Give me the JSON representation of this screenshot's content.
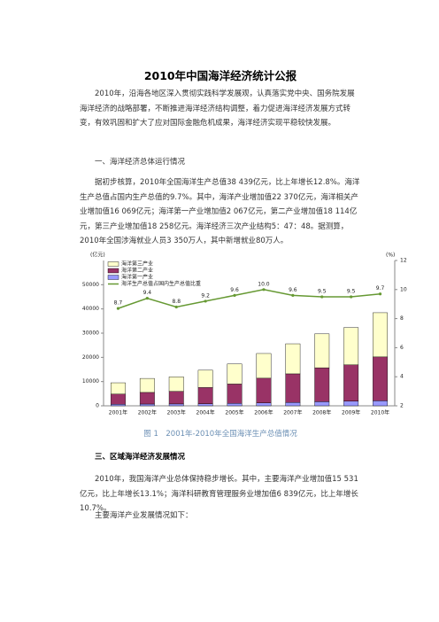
{
  "title": "2010年中国海洋经济统计公报",
  "intro": "2010年，沿海各地区深入贯彻实践科学发展观，认真落实党中央、国务院发展海洋经济的战略部署，不断推进海洋经济结构调整，着力促进海洋经济发展方式转变，有效巩固和扩大了应对国际金融危机成果，海洋经济实现平稳较快发展。",
  "section1": {
    "heading": "一、海洋经济总体运行情况",
    "text": "据初步核算，2010年全国海洋生产总值38 439亿元，比上年增长12.8%。海洋生产总值占国内生产总值的9.7%。其中，海洋产业增加值22 370亿元，海洋相关产业增加值16 069亿元；海洋第一产业增加值2 067亿元，第二产业增加值18 114亿元，第三产业增加值18 258亿元。海洋经济三次产业结构5：47：48。据测算，2010年全国涉海就业人员3 350万人，其中新增就业80万人。"
  },
  "chart_data": {
    "type": "bar",
    "stacked": true,
    "categories": [
      "2001年",
      "2002年",
      "2003年",
      "2004年",
      "2005年",
      "2006年",
      "2007年",
      "2008年",
      "2009年",
      "2010年"
    ],
    "y_label": "(亿元)",
    "y2_label": "(%)",
    "ylim": [
      0,
      60000
    ],
    "yticks": [
      0,
      10000,
      20000,
      30000,
      40000,
      50000
    ],
    "y2lim": [
      2,
      12
    ],
    "y2ticks": [
      2,
      4,
      6,
      8,
      10,
      12
    ],
    "series": [
      {
        "name": "海洋第一产业",
        "color": "#9999ff",
        "values": [
          650,
          730,
          770,
          850,
          1000,
          1200,
          1400,
          1700,
          1900,
          2067
        ]
      },
      {
        "name": "海洋第二产业",
        "color": "#993366",
        "values": [
          4200,
          4800,
          5200,
          6700,
          8000,
          10200,
          11800,
          14000,
          15000,
          18114
        ]
      },
      {
        "name": "海洋第三产业",
        "color": "#ffffcc",
        "values": [
          4650,
          5770,
          5980,
          7150,
          8300,
          10200,
          12400,
          14000,
          15400,
          18258
        ]
      },
      {
        "name": "海洋生产总值占国内生产总值比重",
        "type": "line",
        "axis": "y2",
        "color": "#669933",
        "values": [
          8.7,
          9.4,
          8.8,
          9.2,
          9.6,
          10.0,
          9.6,
          9.5,
          9.5,
          9.7
        ],
        "value_labels": [
          "8.7",
          "9.4",
          "8.8",
          "9.2",
          "9.6",
          "10.0",
          "9.6",
          "9.5",
          "9.5",
          "9.7"
        ]
      }
    ]
  },
  "caption": "图 1　2001年-2010年全国海洋生产总值情况",
  "section3": {
    "heading": "三、区域海洋经济发展情况",
    "paragraphs": [
      "2010年，我国海洋产业总体保持稳步增长。其中，主要海洋产业增加值15 531亿元，比上年增长13.1%；海洋科研教育管理服务业增加值6 839亿元，比上年增长10.7%。",
      "主要海洋产业发展情况如下："
    ]
  }
}
